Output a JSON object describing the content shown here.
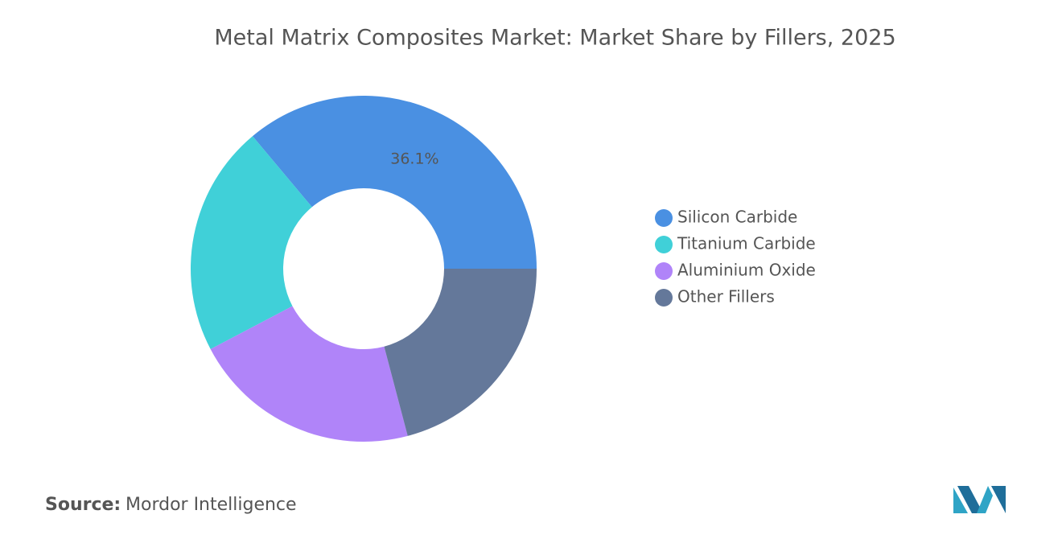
{
  "chart_data": {
    "type": "donut",
    "title": "Metal Matrix Composites Market: Market Share by Fillers, 2025",
    "categories": [
      "Silicon Carbide",
      "Titanium Carbide",
      "Aluminium Oxide",
      "Other Fillers"
    ],
    "values": [
      36.1,
      21.6,
      21.4,
      20.9
    ],
    "value_labels": [
      "36.1%",
      null,
      null,
      null
    ],
    "colors": [
      "#4a90e2",
      "#40d0d8",
      "#b084f9",
      "#64789a"
    ],
    "legend": "right"
  },
  "source": {
    "label": "Source:",
    "text": "Mordor Intelligence"
  }
}
